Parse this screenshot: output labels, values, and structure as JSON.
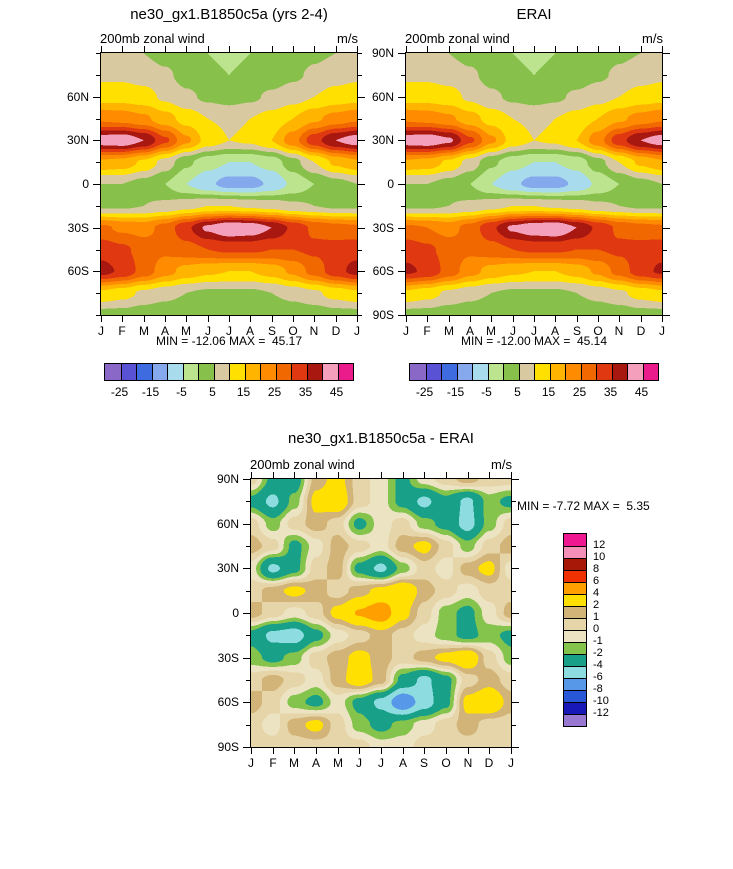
{
  "months": [
    "J",
    "F",
    "M",
    "A",
    "M",
    "J",
    "J",
    "A",
    "S",
    "O",
    "N",
    "D",
    "J"
  ],
  "latitudes": [
    90,
    75,
    60,
    45,
    30,
    15,
    0,
    -15,
    -30,
    -45,
    -60,
    -75,
    -90
  ],
  "lat_labels": {
    "90": "90N",
    "60": "60N",
    "30": "30N",
    "0": "0",
    "-30": "30S",
    "-60": "60S",
    "-90": "90S"
  },
  "panels": [
    {
      "title": "ne30_gx1.B1850c5a (yrs 2-4)",
      "subtitle_left": "200mb zonal wind",
      "subtitle_right": "m/s",
      "minmax": "MIN = -12.06 MAX =  45.17"
    },
    {
      "title": "ERAI",
      "subtitle_left": "200mb zonal wind",
      "subtitle_right": "m/s",
      "minmax": "MIN = -12.00 MAX =  45.14"
    },
    {
      "title": "ne30_gx1.B1850c5a - ERAI",
      "subtitle_left": "200mb zonal wind",
      "subtitle_right": "m/s",
      "minmax": "MIN = -7.72 MAX =  5.35"
    }
  ],
  "chart_data": [
    {
      "type": "heatmap",
      "title": "ne30_gx1.B1850c5a (yrs 2-4)",
      "subtitle": "200mb zonal wind",
      "units": "m/s",
      "min": -12.06,
      "max": 45.17,
      "x": [
        "J",
        "F",
        "M",
        "A",
        "M",
        "J",
        "J",
        "A",
        "S",
        "O",
        "N",
        "D",
        "J"
      ],
      "y": [
        90,
        75,
        60,
        45,
        30,
        15,
        0,
        -15,
        -30,
        -45,
        -60,
        -75,
        -90
      ],
      "levels": [
        -25,
        -20,
        -15,
        -10,
        -5,
        0,
        5,
        10,
        15,
        20,
        25,
        30,
        35,
        40,
        45
      ],
      "colors": [
        "#8968c8",
        "#5a52d5",
        "#3f6be0",
        "#86a8ec",
        "#a8dcec",
        "#bce48e",
        "#88c04c",
        "#d8c9a0",
        "#ffe000",
        "#ffb400",
        "#ff8c00",
        "#f26800",
        "#e03810",
        "#a81810",
        "#f4a0bc",
        "#ea1c8c"
      ],
      "colorbar_labels": [
        "-25",
        "-15",
        "-5",
        "5",
        "15",
        "25",
        "35",
        "45"
      ],
      "values": [
        [
          6,
          6,
          5,
          3,
          1,
          0,
          -1,
          0,
          1,
          2,
          4,
          5,
          6
        ],
        [
          9,
          9,
          8,
          6,
          3,
          1,
          0,
          1,
          2,
          4,
          6,
          8,
          9
        ],
        [
          13,
          13,
          12,
          9,
          6,
          4,
          3,
          4,
          6,
          8,
          10,
          12,
          13
        ],
        [
          24,
          23,
          21,
          17,
          13,
          10,
          9,
          10,
          12,
          15,
          19,
          22,
          24
        ],
        [
          43,
          44,
          40,
          31,
          21,
          13,
          10,
          11,
          15,
          23,
          33,
          40,
          43
        ],
        [
          19,
          18,
          14,
          8,
          1,
          -3,
          -5,
          -5,
          -3,
          3,
          10,
          16,
          19
        ],
        [
          5,
          5,
          3,
          0,
          -5,
          -9,
          -12,
          -12,
          -9,
          -4,
          0,
          3,
          5
        ],
        [
          4,
          4,
          5,
          6,
          8,
          10,
          10,
          9,
          8,
          6,
          5,
          4,
          4
        ],
        [
          26,
          24,
          23,
          27,
          34,
          41,
          45,
          44,
          40,
          34,
          29,
          27,
          26
        ],
        [
          33,
          31,
          28,
          26,
          28,
          30,
          31,
          31,
          30,
          30,
          31,
          32,
          33
        ],
        [
          37,
          34,
          28,
          22,
          18,
          16,
          15,
          15,
          17,
          21,
          27,
          33,
          37
        ],
        [
          14,
          12,
          9,
          7,
          5,
          4,
          4,
          4,
          5,
          7,
          9,
          12,
          14
        ],
        [
          3,
          3,
          2,
          1,
          0,
          0,
          0,
          0,
          0,
          1,
          2,
          3,
          3
        ]
      ]
    },
    {
      "type": "heatmap",
      "title": "ERAI",
      "subtitle": "200mb zonal wind",
      "units": "m/s",
      "min": -12.0,
      "max": 45.14,
      "x": [
        "J",
        "F",
        "M",
        "A",
        "M",
        "J",
        "J",
        "A",
        "S",
        "O",
        "N",
        "D",
        "J"
      ],
      "y": [
        90,
        75,
        60,
        45,
        30,
        15,
        0,
        -15,
        -30,
        -45,
        -60,
        -75,
        -90
      ],
      "levels": [
        -25,
        -20,
        -15,
        -10,
        -5,
        0,
        5,
        10,
        15,
        20,
        25,
        30,
        35,
        40,
        45
      ],
      "colors": [
        "#8968c8",
        "#5a52d5",
        "#3f6be0",
        "#86a8ec",
        "#a8dcec",
        "#bce48e",
        "#88c04c",
        "#d8c9a0",
        "#ffe000",
        "#ffb400",
        "#ff8c00",
        "#f26800",
        "#e03810",
        "#a81810",
        "#f4a0bc",
        "#ea1c8c"
      ],
      "colorbar_labels": [
        "-25",
        "-15",
        "-5",
        "5",
        "15",
        "25",
        "35",
        "45"
      ],
      "values": [
        [
          6,
          6,
          5,
          3,
          1,
          0,
          -1,
          0,
          1,
          2,
          4,
          5,
          6
        ],
        [
          9,
          9,
          8,
          6,
          3,
          1,
          0,
          1,
          2,
          4,
          6,
          8,
          9
        ],
        [
          13,
          13,
          12,
          9,
          6,
          4,
          3,
          4,
          6,
          8,
          10,
          12,
          13
        ],
        [
          24,
          23,
          21,
          17,
          13,
          10,
          9,
          10,
          12,
          15,
          19,
          22,
          24
        ],
        [
          43,
          44,
          41,
          31,
          21,
          13,
          10,
          11,
          15,
          23,
          33,
          40,
          43
        ],
        [
          19,
          18,
          14,
          8,
          1,
          -3,
          -5,
          -5,
          -3,
          3,
          10,
          16,
          19
        ],
        [
          5,
          5,
          3,
          0,
          -5,
          -9,
          -12,
          -12,
          -9,
          -4,
          0,
          3,
          5
        ],
        [
          4,
          4,
          5,
          6,
          8,
          10,
          10,
          9,
          8,
          6,
          5,
          4,
          4
        ],
        [
          26,
          25,
          23,
          27,
          34,
          41,
          44,
          45,
          40,
          34,
          29,
          27,
          26
        ],
        [
          33,
          31,
          28,
          26,
          28,
          30,
          31,
          31,
          30,
          30,
          31,
          32,
          33
        ],
        [
          36,
          34,
          28,
          22,
          18,
          16,
          15,
          15,
          17,
          21,
          27,
          33,
          36
        ],
        [
          14,
          12,
          9,
          7,
          5,
          4,
          4,
          4,
          5,
          7,
          9,
          12,
          14
        ],
        [
          3,
          3,
          2,
          1,
          0,
          0,
          0,
          0,
          0,
          1,
          2,
          3,
          3
        ]
      ]
    },
    {
      "type": "heatmap",
      "title": "ne30_gx1.B1850c5a - ERAI",
      "subtitle": "200mb zonal wind",
      "units": "m/s",
      "min": -7.72,
      "max": 5.35,
      "x": [
        "J",
        "F",
        "M",
        "A",
        "M",
        "J",
        "J",
        "A",
        "S",
        "O",
        "N",
        "D",
        "J"
      ],
      "y": [
        90,
        75,
        60,
        45,
        30,
        15,
        0,
        -15,
        -30,
        -45,
        -60,
        -75,
        -90
      ],
      "levels": [
        -12,
        -10,
        -8,
        -6,
        -4,
        -2,
        -1,
        0,
        1,
        2,
        4,
        6,
        8,
        10,
        12
      ],
      "colors": [
        "#9878d0",
        "#1818b8",
        "#2858d8",
        "#5898e8",
        "#8cdce0",
        "#18a088",
        "#84c44c",
        "#ece3c2",
        "#e6d5a8",
        "#d2b478",
        "#ffe000",
        "#ffa000",
        "#f03000",
        "#a81808",
        "#f490b8",
        "#f01890"
      ],
      "colorbar_labels": [
        "12",
        "10",
        "8",
        "6",
        "4",
        "2",
        "1",
        "0",
        "-1",
        "-2",
        "-4",
        "-6",
        "-8",
        "-10",
        "-12"
      ],
      "values": [
        [
          0.5,
          -2.5,
          -3.0,
          1.5,
          2.5,
          0.5,
          -0.5,
          -2.5,
          -0.5,
          0.5,
          1.5,
          0.5,
          0.5
        ],
        [
          -2.5,
          -4.5,
          -1.5,
          2.5,
          3.2,
          0.5,
          -0.5,
          -2.5,
          -4.5,
          -2.5,
          -4.5,
          -1.5,
          -2.5
        ],
        [
          0.5,
          -1.5,
          0.5,
          1.5,
          0.5,
          -2.5,
          -0.5,
          0.5,
          -1.5,
          -2.5,
          -4.8,
          -1.5,
          0.5
        ],
        [
          1.5,
          0.5,
          -2.5,
          -0.5,
          1.5,
          0.5,
          -0.5,
          1.5,
          2.5,
          0.5,
          -1.5,
          0.5,
          1.5
        ],
        [
          -0.5,
          -4.5,
          -2.5,
          0.5,
          1.5,
          -2.5,
          -4.5,
          -1.5,
          0.5,
          -0.5,
          1.5,
          2.5,
          -0.5
        ],
        [
          0.5,
          1.5,
          2.5,
          1.5,
          0.5,
          1.5,
          2.5,
          3.5,
          1.5,
          0.5,
          -0.5,
          0.5,
          0.5
        ],
        [
          1.5,
          0.5,
          -0.5,
          0.5,
          2.5,
          4.2,
          5.3,
          2.5,
          0.5,
          -1.5,
          -2.5,
          -0.5,
          1.5
        ],
        [
          -2.5,
          -4.5,
          -5.0,
          -2.5,
          -0.5,
          0.5,
          1.5,
          0.5,
          -0.5,
          -1.5,
          -2.5,
          -1.5,
          -2.5
        ],
        [
          -1.5,
          -2.5,
          -1.5,
          0.5,
          1.5,
          2.5,
          1.5,
          0.5,
          1.5,
          2.5,
          3.5,
          0.5,
          -1.5
        ],
        [
          0.5,
          1.5,
          0.5,
          -0.5,
          1.5,
          3.0,
          1.5,
          -2.5,
          -4.5,
          -2.5,
          0.5,
          1.5,
          0.5
        ],
        [
          1.5,
          0.5,
          -1.5,
          -2.5,
          -0.5,
          -2.5,
          -4.5,
          -7.7,
          -5.0,
          -2.5,
          2.5,
          3.5,
          1.5
        ],
        [
          0.5,
          -0.5,
          1.5,
          2.5,
          0.5,
          -1.5,
          -2.5,
          -1.5,
          -0.5,
          0.5,
          1.5,
          0.5,
          0.5
        ],
        [
          0.5,
          0.5,
          0.5,
          0.5,
          0.5,
          0.5,
          -0.5,
          -0.5,
          0.5,
          0.5,
          0.5,
          0.5,
          0.5
        ]
      ]
    }
  ]
}
